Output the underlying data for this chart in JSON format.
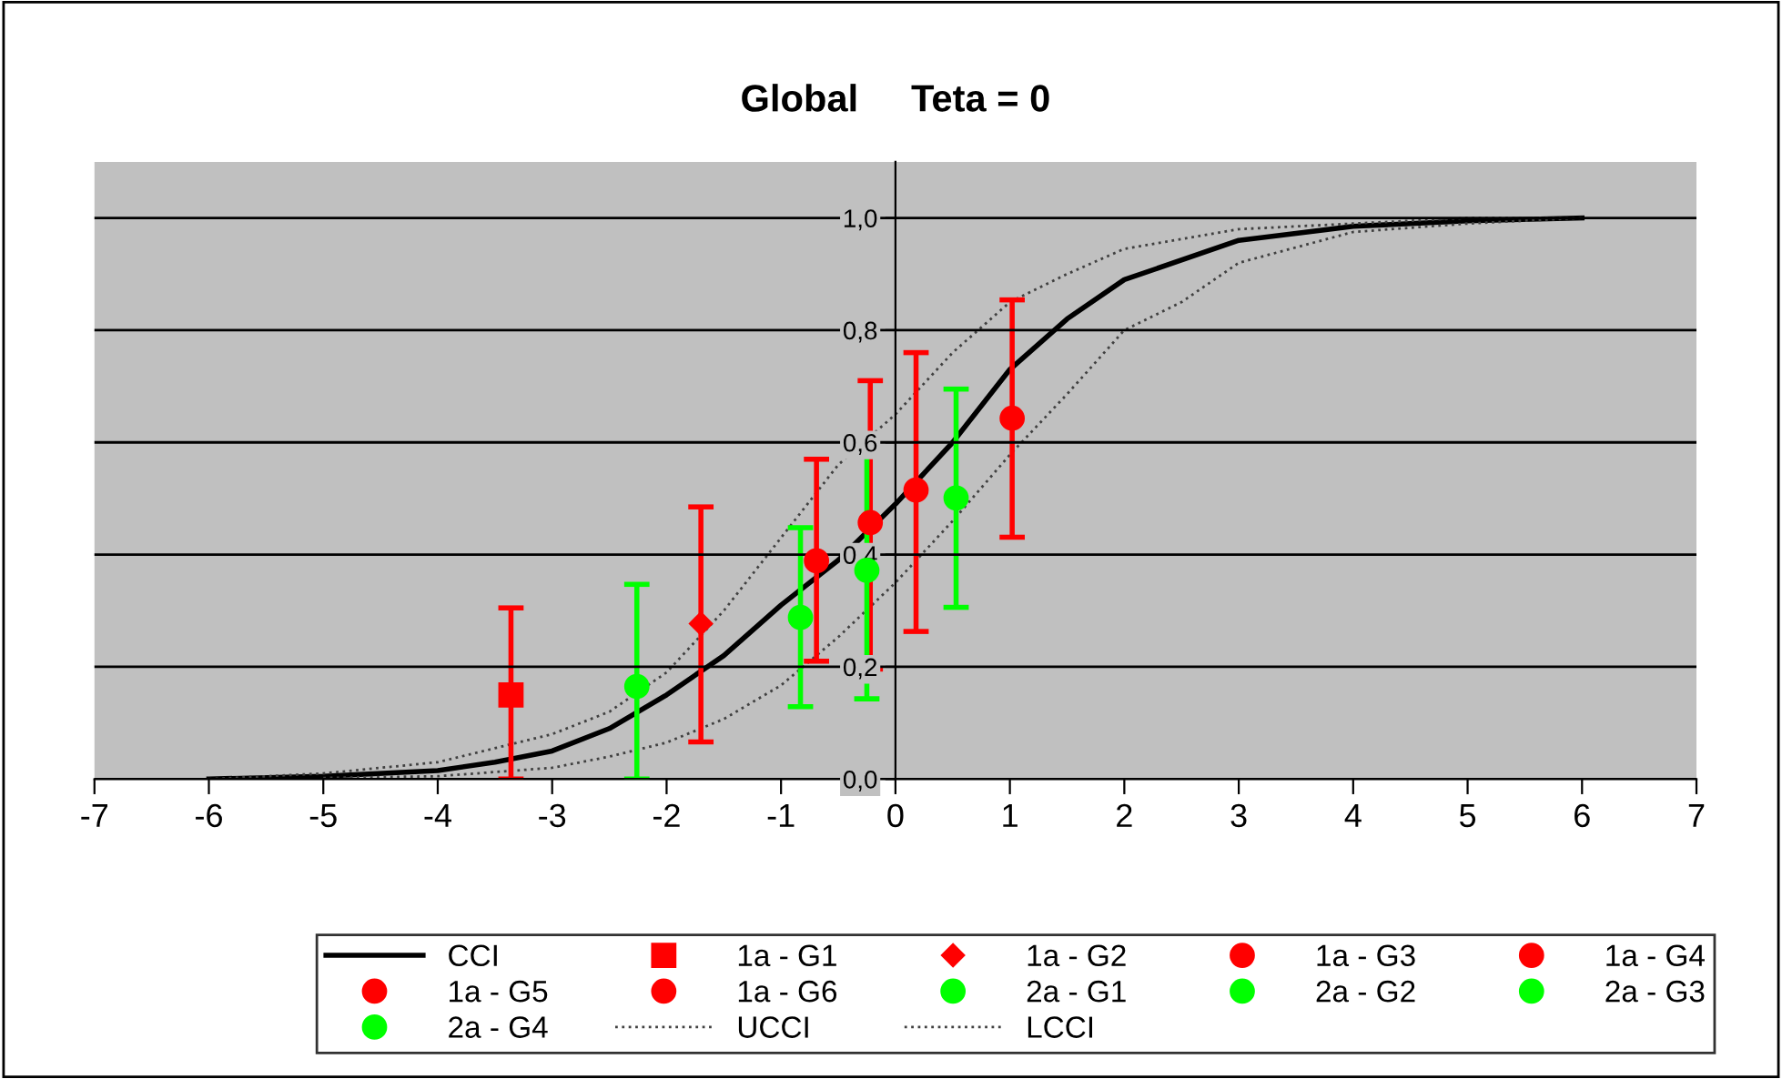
{
  "chart_data": {
    "type": "scatter",
    "title": "Global     Teta = 0",
    "xlim": [
      -7,
      7
    ],
    "ylim": [
      0,
      1.1
    ],
    "xticks": [
      {
        "value": -7,
        "label": "-7"
      },
      {
        "value": -6,
        "label": "-6"
      },
      {
        "value": -5,
        "label": "-5"
      },
      {
        "value": -4,
        "label": "-4"
      },
      {
        "value": -3,
        "label": "-3"
      },
      {
        "value": -2,
        "label": "-2"
      },
      {
        "value": -1,
        "label": "-1"
      },
      0,
      1,
      2,
      3,
      4,
      5,
      6,
      7
    ],
    "yticks": [
      {
        "value": 0,
        "label": "0,0"
      },
      {
        "value": 0.2,
        "label": "0,2"
      },
      {
        "value": 0.4,
        "label": "0,4"
      },
      {
        "value": 0.6,
        "label": "0,6"
      },
      {
        "value": 0.8,
        "label": "0,8"
      },
      {
        "value": 1.0,
        "label": "1,0"
      }
    ],
    "grid": "y",
    "legend": "bottom",
    "series": [
      {
        "name": "CCI",
        "type": "line",
        "line_style": "solid",
        "marker": "none",
        "color": "#000000",
        "x": [
          -6,
          -5,
          -4,
          -3.5,
          -3,
          -2.5,
          -2,
          -1.5,
          -1,
          -0.5,
          0,
          0.5,
          1,
          1.5,
          2,
          3,
          4,
          5,
          6
        ],
        "values": [
          0.0,
          0.005,
          0.015,
          0.03,
          0.05,
          0.09,
          0.15,
          0.22,
          0.31,
          0.39,
          0.49,
          0.6,
          0.73,
          0.82,
          0.89,
          0.96,
          0.985,
          0.995,
          1.0
        ]
      },
      {
        "name": "1a - G1",
        "marker": "square",
        "color": "#ff0000",
        "x": [
          -3.36
        ],
        "values": [
          0.15
        ],
        "errors": [
          [
            0.0,
            0.305
          ]
        ]
      },
      {
        "name": "1a - G2",
        "marker": "diamond",
        "color": "#ff0000",
        "x": [
          -1.7
        ],
        "values": [
          0.277
        ],
        "errors": [
          [
            0.066,
            0.485
          ]
        ]
      },
      {
        "name": "1a - G3",
        "marker": "circle",
        "color": "#ff0000",
        "x": [
          -0.69
        ],
        "values": [
          0.389
        ],
        "errors": [
          [
            0.21,
            0.57
          ]
        ]
      },
      {
        "name": "1a - G4",
        "marker": "circle",
        "color": "#ff0000",
        "x": [
          -0.22
        ],
        "values": [
          0.457
        ],
        "errors": [
          [
            0.196,
            0.71
          ]
        ]
      },
      {
        "name": "1a - G5",
        "marker": "circle",
        "color": "#ff0000",
        "x": [
          0.18
        ],
        "values": [
          0.515
        ],
        "errors": [
          [
            0.263,
            0.76
          ]
        ]
      },
      {
        "name": "1a - G6",
        "marker": "circle",
        "color": "#ff0000",
        "x": [
          1.02
        ],
        "values": [
          0.643
        ],
        "errors": [
          [
            0.431,
            0.854
          ]
        ]
      },
      {
        "name": "2a - G1",
        "marker": "circle",
        "color": "#00ff00",
        "x": [
          -2.26
        ],
        "values": [
          0.165
        ],
        "errors": [
          [
            0.0,
            0.347
          ]
        ]
      },
      {
        "name": "2a - G2",
        "marker": "circle",
        "color": "#00ff00",
        "x": [
          -0.83
        ],
        "values": [
          0.288
        ],
        "errors": [
          [
            0.129,
            0.448
          ]
        ]
      },
      {
        "name": "2a - G3",
        "marker": "circle",
        "color": "#00ff00",
        "x": [
          -0.25
        ],
        "values": [
          0.372
        ],
        "errors": [
          [
            0.143,
            0.596
          ]
        ]
      },
      {
        "name": "2a - G4",
        "marker": "circle",
        "color": "#00ff00",
        "x": [
          0.53
        ],
        "values": [
          0.501
        ],
        "errors": [
          [
            0.306,
            0.695
          ]
        ]
      },
      {
        "name": "UCCI",
        "type": "line",
        "line_style": "dotted",
        "marker": "none",
        "color": "#404040",
        "x": [
          -6,
          -5,
          -4,
          -3,
          -2.5,
          -2,
          -1.5,
          -1,
          -0.5,
          0,
          0.5,
          1,
          1.5,
          2,
          3,
          4,
          5,
          6
        ],
        "values": [
          0.0,
          0.01,
          0.03,
          0.08,
          0.12,
          0.19,
          0.3,
          0.43,
          0.56,
          0.65,
          0.76,
          0.85,
          0.9,
          0.945,
          0.98,
          0.99,
          1.0,
          1.0
        ]
      },
      {
        "name": "LCCI",
        "type": "line",
        "line_style": "dotted",
        "marker": "none",
        "color": "#404040",
        "x": [
          -5,
          -4,
          -3,
          -2.5,
          -2,
          -1.5,
          -1,
          -0.5,
          0,
          0.5,
          1,
          1.5,
          2,
          2.5,
          3,
          4,
          5,
          6
        ],
        "values": [
          0.002,
          0.005,
          0.02,
          0.04,
          0.065,
          0.107,
          0.167,
          0.253,
          0.35,
          0.46,
          0.578,
          0.686,
          0.8,
          0.85,
          0.92,
          0.975,
          0.99,
          1.0
        ]
      }
    ]
  }
}
